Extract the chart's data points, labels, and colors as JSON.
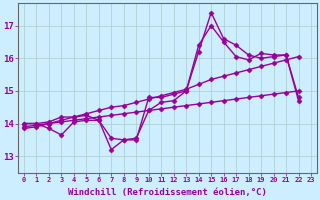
{
  "background_color": "#cceeff",
  "grid_color": "#aacccc",
  "line_color": "#990099",
  "marker": "D",
  "markersize": 2.5,
  "linewidth": 1.0,
  "xlabel": "Windchill (Refroidissement éolien,°C)",
  "xlabel_fontsize": 6.5,
  "xlim": [
    -0.5,
    23.5
  ],
  "ylim": [
    12.5,
    17.7
  ],
  "yticks": [
    13,
    14,
    15,
    16,
    17
  ],
  "xticks": [
    0,
    1,
    2,
    3,
    4,
    5,
    6,
    7,
    8,
    9,
    10,
    11,
    12,
    13,
    14,
    15,
    16,
    17,
    18,
    19,
    20,
    21,
    22,
    23
  ],
  "series": [
    {
      "x": [
        0,
        1,
        2,
        3,
        4,
        5,
        6,
        7,
        8,
        9,
        10,
        11,
        12,
        13,
        14,
        15,
        16,
        17,
        18,
        19,
        20,
        21,
        22
      ],
      "y": [
        14.0,
        14.0,
        14.05,
        14.2,
        14.2,
        14.25,
        14.1,
        13.2,
        13.5,
        13.5,
        14.8,
        14.8,
        14.9,
        15.0,
        16.2,
        17.4,
        16.6,
        16.4,
        16.1,
        16.0,
        16.05,
        16.1,
        14.8
      ]
    },
    {
      "x": [
        0,
        1,
        2,
        3,
        4,
        5,
        6,
        7,
        8,
        9,
        10,
        11,
        12,
        13,
        14,
        15,
        16,
        17,
        18,
        19,
        20,
        21,
        22
      ],
      "y": [
        14.0,
        14.0,
        13.85,
        13.65,
        14.05,
        14.1,
        14.1,
        13.55,
        13.5,
        13.55,
        14.4,
        14.65,
        14.7,
        15.0,
        16.4,
        17.0,
        16.5,
        16.05,
        15.95,
        16.15,
        16.1,
        16.1,
        14.7
      ]
    },
    {
      "x": [
        0,
        1,
        2,
        3,
        4,
        5,
        6,
        7,
        8,
        9,
        10,
        11,
        12,
        13,
        14,
        15,
        16,
        17,
        18,
        19,
        20,
        21,
        22
      ],
      "y": [
        13.85,
        13.9,
        14.0,
        14.1,
        14.2,
        14.3,
        14.4,
        14.5,
        14.55,
        14.65,
        14.75,
        14.85,
        14.95,
        15.05,
        15.2,
        15.35,
        15.45,
        15.55,
        15.65,
        15.75,
        15.85,
        15.95,
        16.05
      ]
    },
    {
      "x": [
        0,
        1,
        2,
        3,
        4,
        5,
        6,
        7,
        8,
        9,
        10,
        11,
        12,
        13,
        14,
        15,
        16,
        17,
        18,
        19,
        20,
        21,
        22
      ],
      "y": [
        13.9,
        13.95,
        14.0,
        14.05,
        14.1,
        14.15,
        14.2,
        14.25,
        14.3,
        14.35,
        14.4,
        14.45,
        14.5,
        14.55,
        14.6,
        14.65,
        14.7,
        14.75,
        14.8,
        14.85,
        14.9,
        14.95,
        15.0
      ]
    }
  ]
}
